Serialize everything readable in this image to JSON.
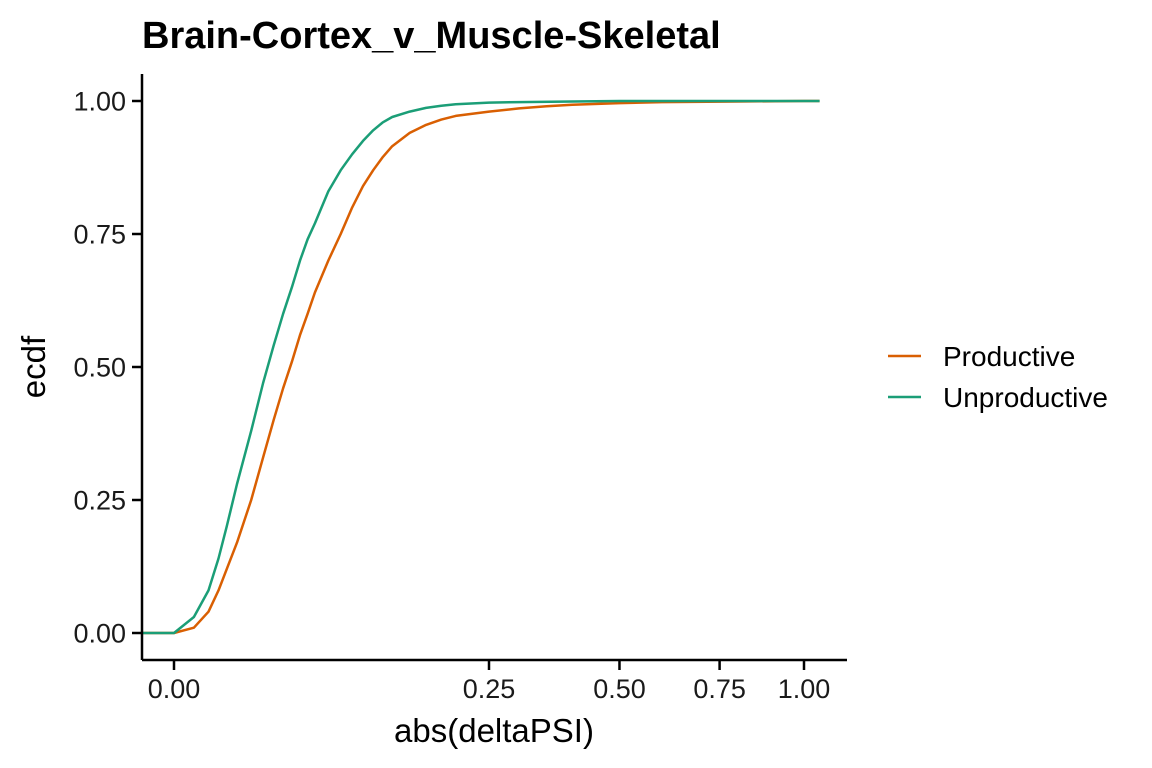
{
  "chart_data": {
    "type": "line",
    "title": "Brain-Cortex_v_Muscle-Skeletal",
    "xlabel": "abs(deltaPSI)",
    "ylabel": "ecdf",
    "x_scale": "sqrt",
    "xlim": [
      0,
      1.05
    ],
    "ylim": [
      0,
      1
    ],
    "xticks": [
      0,
      0.25,
      0.5,
      0.75,
      1.0
    ],
    "xtick_labels": [
      "0.00",
      "0.25",
      "0.50",
      "0.75",
      "1.00"
    ],
    "yticks": [
      0,
      0.25,
      0.5,
      0.75,
      1.0
    ],
    "ytick_labels": [
      "0.00",
      "0.25",
      "0.50",
      "0.75",
      "1.00"
    ],
    "grid": false,
    "legend_position": "right",
    "series": [
      {
        "name": "Productive",
        "color": "#D95F02",
        "x": [
          -0.001,
          0,
          0.001,
          0.003,
          0.005,
          0.007,
          0.01,
          0.015,
          0.02,
          0.025,
          0.03,
          0.035,
          0.04,
          0.045,
          0.05,
          0.06,
          0.07,
          0.08,
          0.09,
          0.1,
          0.11,
          0.12,
          0.14,
          0.16,
          0.18,
          0.2,
          0.25,
          0.3,
          0.35,
          0.4,
          0.5,
          0.6,
          0.8,
          1.0,
          1.05
        ],
        "values": [
          0,
          0,
          0.01,
          0.04,
          0.08,
          0.12,
          0.17,
          0.25,
          0.33,
          0.4,
          0.46,
          0.51,
          0.56,
          0.6,
          0.64,
          0.7,
          0.75,
          0.8,
          0.84,
          0.87,
          0.895,
          0.915,
          0.94,
          0.955,
          0.965,
          0.972,
          0.98,
          0.986,
          0.99,
          0.993,
          0.996,
          0.998,
          0.999,
          1.0,
          1.0
        ]
      },
      {
        "name": "Unproductive",
        "color": "#1B9E77",
        "x": [
          -0.001,
          0,
          0.001,
          0.003,
          0.005,
          0.007,
          0.01,
          0.015,
          0.02,
          0.025,
          0.03,
          0.035,
          0.04,
          0.045,
          0.05,
          0.06,
          0.07,
          0.08,
          0.09,
          0.1,
          0.11,
          0.12,
          0.14,
          0.16,
          0.18,
          0.2,
          0.25,
          0.3,
          0.4,
          0.5,
          0.6,
          0.8,
          1.0,
          1.05
        ],
        "values": [
          0,
          0,
          0.03,
          0.08,
          0.14,
          0.2,
          0.28,
          0.38,
          0.47,
          0.54,
          0.6,
          0.65,
          0.7,
          0.74,
          0.77,
          0.83,
          0.87,
          0.9,
          0.925,
          0.945,
          0.96,
          0.97,
          0.98,
          0.987,
          0.991,
          0.994,
          0.997,
          0.998,
          0.999,
          1.0,
          1.0,
          1.0,
          1.0,
          1.0
        ]
      }
    ]
  }
}
